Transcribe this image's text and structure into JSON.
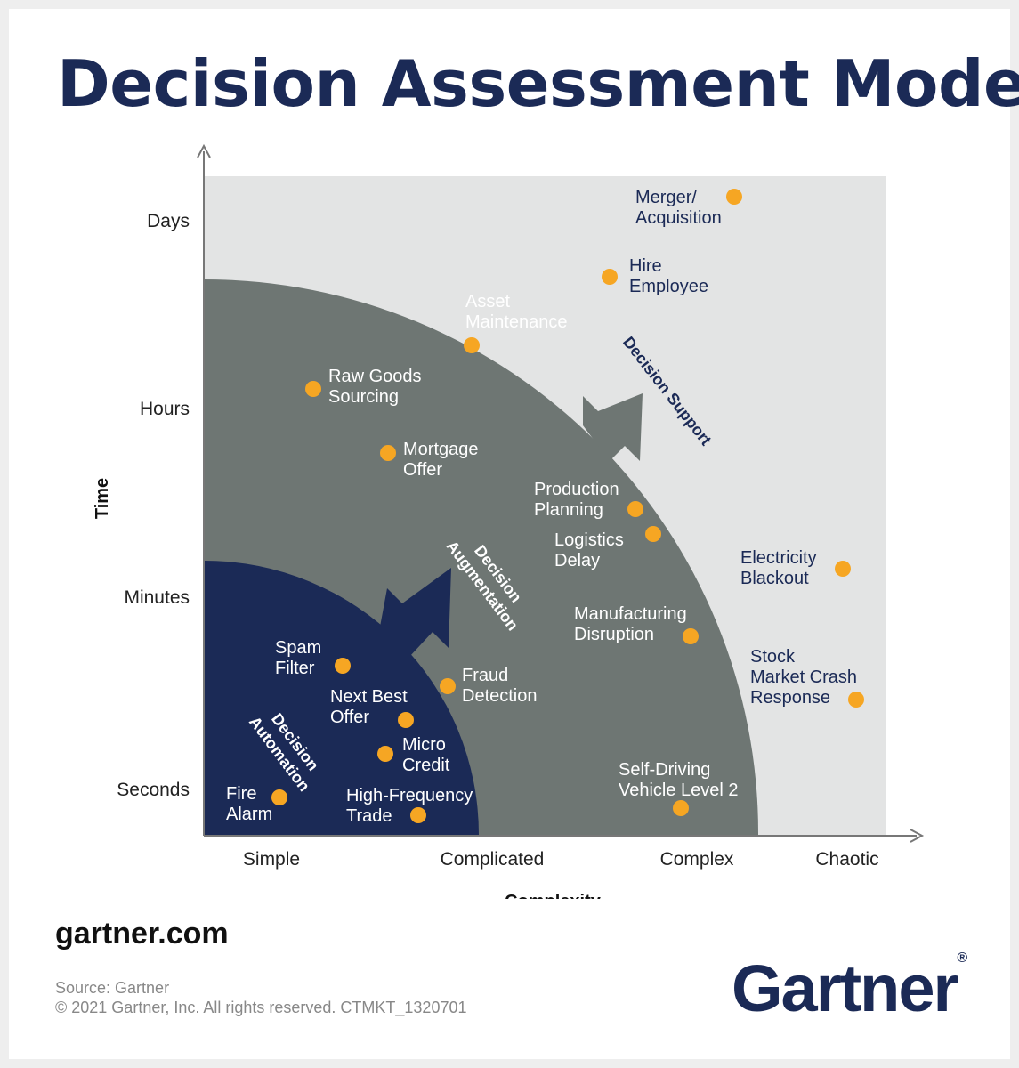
{
  "title": "Decision Assessment Model",
  "y_axis": {
    "label": "Time",
    "ticks": [
      "Seconds",
      "Minutes",
      "Hours",
      "Days"
    ]
  },
  "x_axis": {
    "label": "Complexity",
    "ticks": [
      "Simple",
      "Complicated",
      "Complex",
      "Chaotic"
    ]
  },
  "zones": {
    "automation": [
      "Decision",
      "Automation"
    ],
    "augmentation": [
      "Decision",
      "Augmentation"
    ],
    "support": "Decision Support"
  },
  "colors": {
    "title": "#1b2a56",
    "automation_zone": "#1b2a56",
    "augmentation_zone": "#6e7673",
    "support_zone": "#e3e4e4",
    "dot": "#f6a623"
  },
  "decisions": [
    {
      "id": "merger",
      "lines": [
        "Merger/",
        "Acquisition"
      ]
    },
    {
      "id": "hire",
      "lines": [
        "Hire",
        "Employee"
      ]
    },
    {
      "id": "asset",
      "lines": [
        "Asset",
        "Maintenance"
      ]
    },
    {
      "id": "rawgoods",
      "lines": [
        "Raw Goods",
        "Sourcing"
      ]
    },
    {
      "id": "mortgage",
      "lines": [
        "Mortgage",
        "Offer"
      ]
    },
    {
      "id": "production",
      "lines": [
        "Production",
        "Planning"
      ]
    },
    {
      "id": "logistics",
      "lines": [
        "Logistics",
        "Delay"
      ]
    },
    {
      "id": "electricity",
      "lines": [
        "Electricity",
        "Blackout"
      ]
    },
    {
      "id": "manufacturing",
      "lines": [
        "Manufacturing",
        "Disruption"
      ]
    },
    {
      "id": "stock",
      "lines": [
        "Stock",
        "Market Crash",
        "Response"
      ]
    },
    {
      "id": "fraud",
      "lines": [
        "Fraud",
        "Detection"
      ]
    },
    {
      "id": "spam",
      "lines": [
        "Spam",
        "Filter"
      ]
    },
    {
      "id": "nbo",
      "lines": [
        "Next Best",
        "Offer"
      ]
    },
    {
      "id": "micro",
      "lines": [
        "Micro",
        "Credit"
      ]
    },
    {
      "id": "fire",
      "lines": [
        "Fire",
        "Alarm"
      ]
    },
    {
      "id": "hft",
      "lines": [
        "High-Frequency",
        "Trade"
      ]
    },
    {
      "id": "selfdriving",
      "lines": [
        "Self-Driving",
        "Vehicle Level 2"
      ]
    }
  ],
  "footer": {
    "site": "gartner.com",
    "source": "Source: Gartner",
    "copyright": "© 2021 Gartner, Inc. All rights reserved. CTMKT_1320701",
    "logo": "Gartner",
    "logo_mark": "®"
  }
}
